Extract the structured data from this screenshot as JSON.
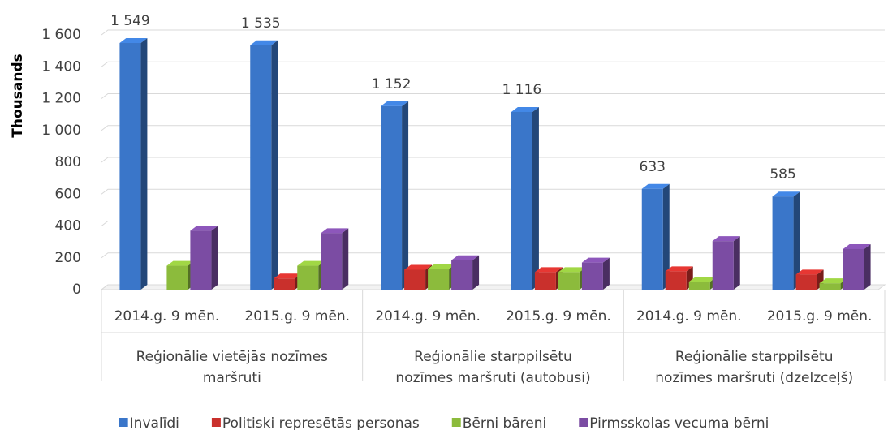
{
  "chart_data": {
    "type": "bar3d",
    "y_axis_label": "Thousands",
    "categories": [
      "2014.g. 9 mēn.",
      "2015.g. 9 mēn.",
      "2014.g. 9 mēn.",
      "2015.g. 9 mēn.",
      "2014.g. 9 mēn.",
      "2015.g. 9 mēn."
    ],
    "groups": [
      {
        "name_lines": [
          "Reģionālie vietējās nozīmes",
          "maršruti"
        ],
        "size": 2
      },
      {
        "name_lines": [
          "Reģionālie starppilsētu",
          "nozīmes maršruti (autobusi)"
        ],
        "size": 2
      },
      {
        "name_lines": [
          "Reģionālie starppilsētu",
          "nozīmes maršruti (dzelzceļš)"
        ],
        "size": 2
      }
    ],
    "series": [
      {
        "name": "Invalīdi",
        "color": "#3a76c9",
        "values": [
          1549,
          1535,
          1152,
          1116,
          633,
          585
        ],
        "value_labels": [
          "1 549",
          "1 535",
          "1 152",
          "1 116",
          "633",
          "585"
        ]
      },
      {
        "name": "Politiski represētās personas",
        "color": "#c9302c",
        "values": [
          0,
          70,
          125,
          110,
          115,
          95
        ]
      },
      {
        "name": "Bērni bāreni",
        "color": "#8cbb3c",
        "values": [
          150,
          150,
          130,
          110,
          50,
          40
        ]
      },
      {
        "name": "Pirmsskolas vecuma bērni",
        "color": "#7b4ca3",
        "values": [
          370,
          355,
          185,
          170,
          305,
          255
        ]
      }
    ],
    "ylim": [
      0,
      1600
    ],
    "yticks": [
      0,
      200,
      400,
      600,
      800,
      {
        "value": 1000,
        "label": "1 000"
      },
      {
        "value": 1200,
        "label": "1 200"
      },
      {
        "value": 1400,
        "label": "1 400"
      },
      {
        "value": 1600,
        "label": "1 600"
      }
    ],
    "grid": true,
    "legend": "bottom"
  }
}
